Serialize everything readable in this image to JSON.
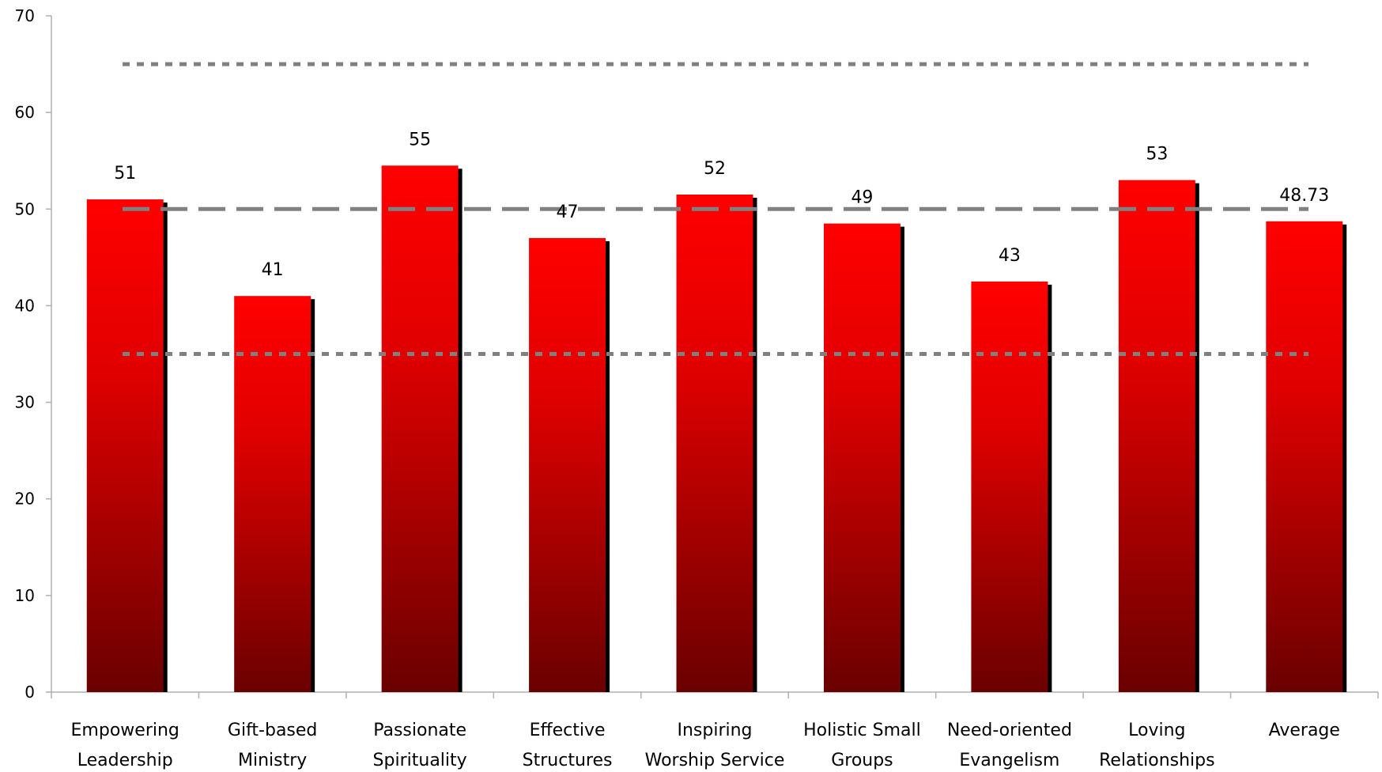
{
  "chart_data": {
    "type": "bar",
    "title": "",
    "xlabel": "",
    "ylabel": "",
    "ylim": [
      0,
      70
    ],
    "yticks": [
      0,
      10,
      20,
      30,
      40,
      50,
      60,
      70
    ],
    "grid": false,
    "categories": [
      [
        "Empowering",
        "Leadership"
      ],
      [
        "Gift-based",
        "Ministry"
      ],
      [
        "Passionate",
        "Spirituality"
      ],
      [
        "Effective",
        "Structures"
      ],
      [
        "Inspiring",
        "Worship Service"
      ],
      [
        "Holistic Small",
        "Groups"
      ],
      [
        "Need-oriented",
        "Evangelism"
      ],
      [
        "Loving",
        "Relationships"
      ],
      [
        "Average",
        ""
      ]
    ],
    "values": [
      51,
      41,
      54.5,
      47,
      51.5,
      48.5,
      42.5,
      53,
      48.73
    ],
    "data_labels": [
      "51",
      "41",
      "55",
      "47",
      "52",
      "49",
      "43",
      "53",
      "48.73"
    ],
    "reference_lines": [
      {
        "value": 65,
        "style": "dotted"
      },
      {
        "value": 50,
        "style": "dashed"
      },
      {
        "value": 35,
        "style": "dotted"
      }
    ],
    "colors": {
      "bar_top": "#ff0000",
      "bar_bottom": "#6a0000",
      "bar_shadow": "#000000",
      "reference_line": "#808080",
      "axis": "#b0b0b0"
    }
  }
}
